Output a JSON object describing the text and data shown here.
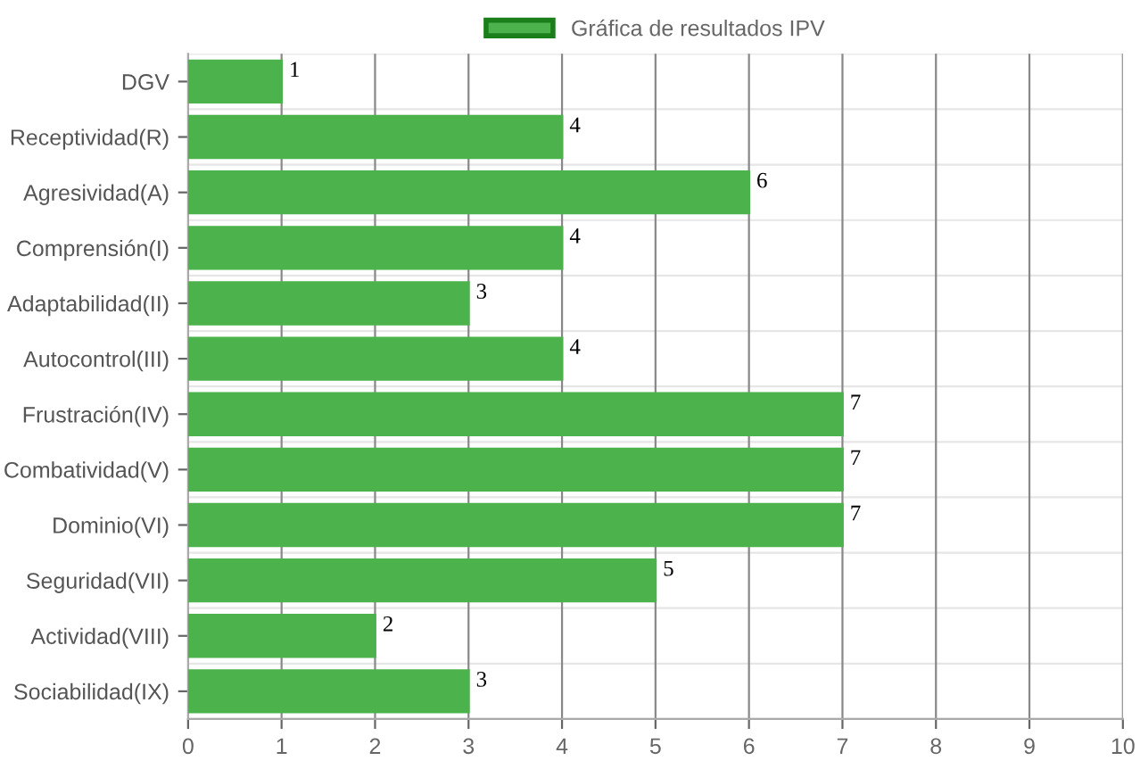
{
  "chart_data": {
    "type": "bar",
    "orientation": "horizontal",
    "categories": [
      "DGV",
      "Receptividad(R)",
      "Agresividad(A)",
      "Comprensión(I)",
      "Adaptabilidad(II)",
      "Autocontrol(III)",
      "Frustración(IV)",
      "Combatividad(V)",
      "Dominio(VI)",
      "Seguridad(VII)",
      "Actividad(VIII)",
      "Sociabilidad(IX)"
    ],
    "series": [
      {
        "name": "Gráfica de resultados IPV",
        "color": "#4cb34c",
        "values": [
          1,
          4,
          6,
          4,
          3,
          4,
          7,
          7,
          7,
          5,
          2,
          3
        ]
      }
    ],
    "xlim": [
      0,
      10
    ],
    "xticks": [
      0,
      1,
      2,
      3,
      4,
      5,
      6,
      7,
      8,
      9,
      10
    ],
    "grid": true,
    "legend": "top",
    "data_labels": true
  }
}
